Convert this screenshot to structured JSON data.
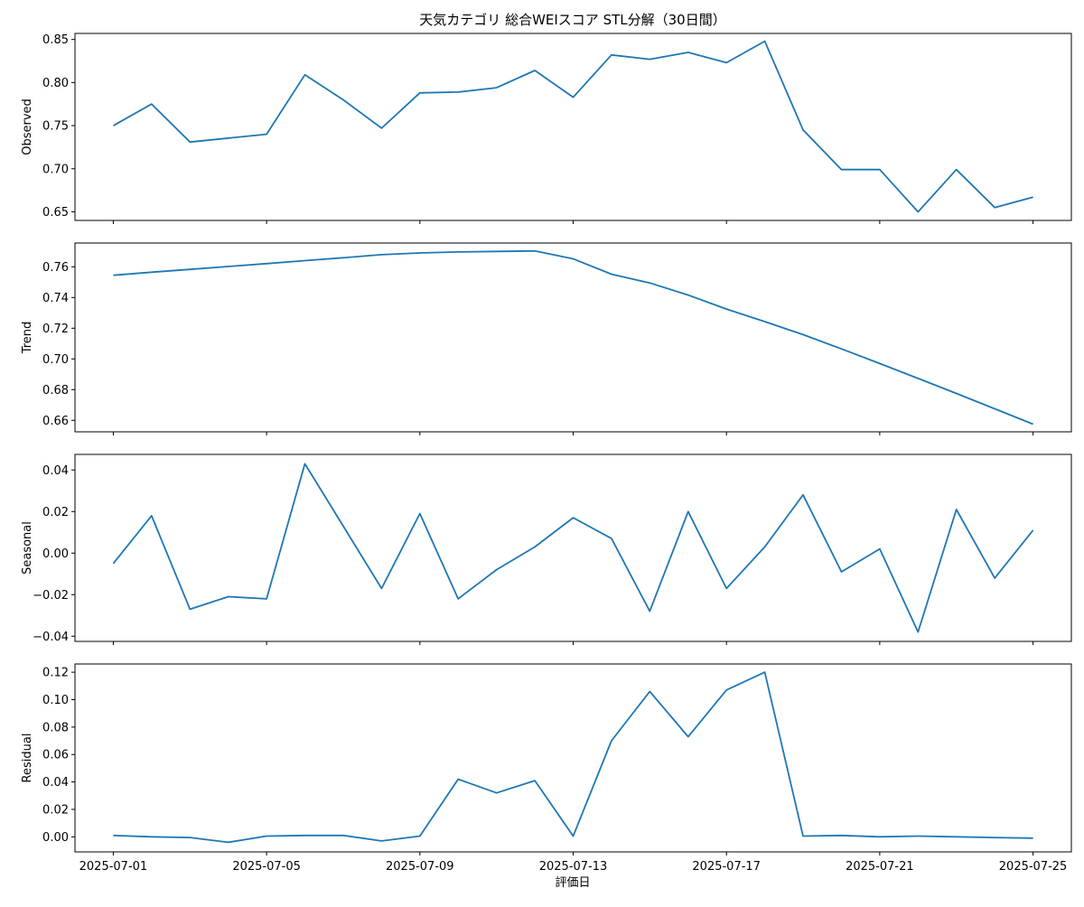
{
  "figure": {
    "title": "天気カテゴリ 総合WEIスコア STL分解（30日間）",
    "xlabel": "評価日"
  },
  "chart_data": [
    {
      "type": "line",
      "ylabel": "Observed",
      "color": "#1f77b4",
      "xlim": [
        "2025-06-30",
        "2025-07-26"
      ],
      "ylim": [
        0.64,
        0.857
      ],
      "yticks": [
        0.65,
        0.7,
        0.75,
        0.8,
        0.85
      ],
      "ytick_labels": [
        "0.65",
        "0.70",
        "0.75",
        "0.80",
        "0.85"
      ],
      "xticks": [
        "2025-07-01",
        "2025-07-05",
        "2025-07-09",
        "2025-07-13",
        "2025-07-17",
        "2025-07-21",
        "2025-07-25"
      ],
      "x": [
        "2025-07-01",
        "2025-07-02",
        "2025-07-03",
        "2025-07-05",
        "2025-07-06",
        "2025-07-07",
        "2025-07-08",
        "2025-07-09",
        "2025-07-10",
        "2025-07-11",
        "2025-07-12",
        "2025-07-13",
        "2025-07-14",
        "2025-07-15",
        "2025-07-16",
        "2025-07-17",
        "2025-07-18",
        "2025-07-19",
        "2025-07-20",
        "2025-07-21",
        "2025-07-22",
        "2025-07-23",
        "2025-07-24",
        "2025-07-25"
      ],
      "y": [
        0.75,
        0.775,
        0.731,
        0.74,
        0.809,
        0.78,
        0.747,
        0.788,
        0.789,
        0.794,
        0.814,
        0.783,
        0.832,
        0.827,
        0.835,
        0.823,
        0.848,
        0.745,
        0.699,
        0.699,
        0.65,
        0.699,
        0.655,
        0.667
      ]
    },
    {
      "type": "line",
      "ylabel": "Trend",
      "color": "#1f77b4",
      "xlim": [
        "2025-06-30",
        "2025-07-26"
      ],
      "ylim": [
        0.6525,
        0.7755
      ],
      "yticks": [
        0.66,
        0.68,
        0.7,
        0.72,
        0.74,
        0.76
      ],
      "ytick_labels": [
        "0.66",
        "0.68",
        "0.70",
        "0.72",
        "0.74",
        "0.76"
      ],
      "xticks": [
        "2025-07-01",
        "2025-07-05",
        "2025-07-09",
        "2025-07-13",
        "2025-07-17",
        "2025-07-21",
        "2025-07-25"
      ],
      "x": [
        "2025-07-01",
        "2025-07-02",
        "2025-07-03",
        "2025-07-04",
        "2025-07-05",
        "2025-07-06",
        "2025-07-07",
        "2025-07-08",
        "2025-07-09",
        "2025-07-10",
        "2025-07-11",
        "2025-07-12",
        "2025-07-13",
        "2025-07-14",
        "2025-07-15",
        "2025-07-16",
        "2025-07-17",
        "2025-07-18",
        "2025-07-19",
        "2025-07-20",
        "2025-07-21",
        "2025-07-22",
        "2025-07-23",
        "2025-07-24",
        "2025-07-25"
      ],
      "y": [
        0.7545,
        0.7565,
        0.7583,
        0.7602,
        0.7621,
        0.764,
        0.7659,
        0.7679,
        0.769,
        0.7697,
        0.77,
        0.7703,
        0.7652,
        0.7552,
        0.7495,
        0.7416,
        0.7325,
        0.7243,
        0.7158,
        0.7065,
        0.697,
        0.6873,
        0.6775,
        0.6675,
        0.6575
      ]
    },
    {
      "type": "line",
      "ylabel": "Seasonal",
      "color": "#1f77b4",
      "xlim": [
        "2025-06-30",
        "2025-07-26"
      ],
      "ylim": [
        -0.0425,
        0.0475
      ],
      "yticks": [
        -0.04,
        -0.02,
        0.0,
        0.02,
        0.04
      ],
      "ytick_labels": [
        "−0.04",
        "−0.02",
        "0.00",
        "0.02",
        "0.04"
      ],
      "xticks": [
        "2025-07-01",
        "2025-07-05",
        "2025-07-09",
        "2025-07-13",
        "2025-07-17",
        "2025-07-21",
        "2025-07-25"
      ],
      "x": [
        "2025-07-01",
        "2025-07-02",
        "2025-07-03",
        "2025-07-04",
        "2025-07-05",
        "2025-07-06",
        "2025-07-07",
        "2025-07-08",
        "2025-07-09",
        "2025-07-10",
        "2025-07-11",
        "2025-07-12",
        "2025-07-13",
        "2025-07-14",
        "2025-07-15",
        "2025-07-16",
        "2025-07-17",
        "2025-07-18",
        "2025-07-19",
        "2025-07-20",
        "2025-07-21",
        "2025-07-22",
        "2025-07-23",
        "2025-07-24",
        "2025-07-25"
      ],
      "y": [
        -0.005,
        0.018,
        -0.027,
        -0.021,
        -0.022,
        0.043,
        0.013,
        -0.017,
        0.019,
        -0.022,
        -0.008,
        0.003,
        0.017,
        0.007,
        -0.028,
        0.02,
        -0.017,
        0.003,
        0.028,
        -0.009,
        0.002,
        -0.038,
        0.021,
        -0.012,
        0.011
      ]
    },
    {
      "type": "line",
      "ylabel": "Residual",
      "color": "#1f77b4",
      "xlim": [
        "2025-06-30",
        "2025-07-26"
      ],
      "ylim": [
        -0.011,
        0.126
      ],
      "yticks": [
        0.0,
        0.02,
        0.04,
        0.06,
        0.08,
        0.1,
        0.12
      ],
      "ytick_labels": [
        "0.00",
        "0.02",
        "0.04",
        "0.06",
        "0.08",
        "0.10",
        "0.12"
      ],
      "xticks": [
        "2025-07-01",
        "2025-07-05",
        "2025-07-09",
        "2025-07-13",
        "2025-07-17",
        "2025-07-21",
        "2025-07-25"
      ],
      "xtick_labels": [
        "2025-07-01",
        "2025-07-05",
        "2025-07-09",
        "2025-07-13",
        "2025-07-17",
        "2025-07-21",
        "2025-07-25"
      ],
      "x": [
        "2025-07-01",
        "2025-07-02",
        "2025-07-03",
        "2025-07-04",
        "2025-07-05",
        "2025-07-06",
        "2025-07-07",
        "2025-07-08",
        "2025-07-09",
        "2025-07-10",
        "2025-07-11",
        "2025-07-12",
        "2025-07-13",
        "2025-07-14",
        "2025-07-15",
        "2025-07-16",
        "2025-07-17",
        "2025-07-18",
        "2025-07-19",
        "2025-07-20",
        "2025-07-21",
        "2025-07-22",
        "2025-07-23",
        "2025-07-24",
        "2025-07-25"
      ],
      "y": [
        0.001,
        0.0,
        -0.0005,
        -0.004,
        0.0005,
        0.001,
        0.001,
        -0.003,
        0.0005,
        0.042,
        0.032,
        0.041,
        0.0005,
        0.07,
        0.106,
        0.073,
        0.107,
        0.12,
        0.0005,
        0.001,
        0.0,
        0.0005,
        0.0,
        -0.0005,
        -0.001
      ]
    }
  ]
}
